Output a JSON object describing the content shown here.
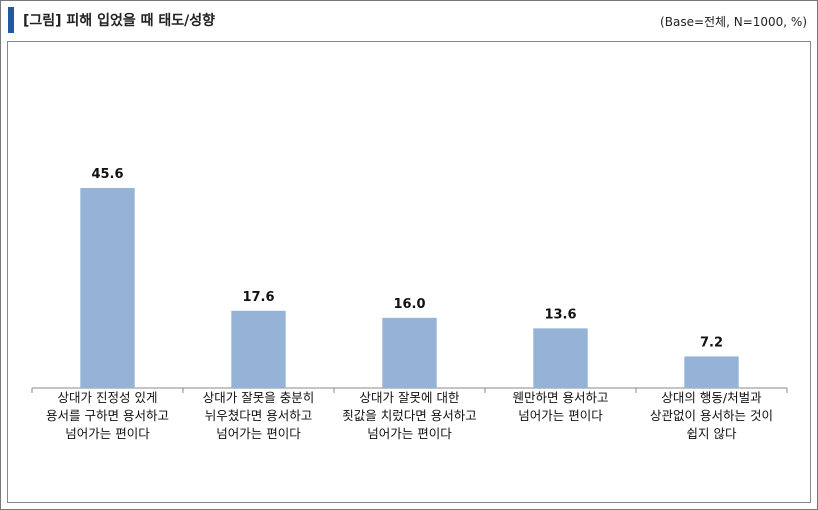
{
  "chart_data": {
    "type": "bar",
    "title": "[그림] 피해 입었을 때 태도/성향",
    "subtitle": "(Base=전체, N=1000, %)",
    "categories": [
      "상대가 진정성 있게 용서를 구하면 용서하고 넘어가는 편이다",
      "상대가 잘못을 충분히 뉘우쳤다면 용서하고 넘어가는 편이다",
      "상대가 잘못에 대한 죗값을 치렀다면 용서하고 넘어가는 편이다",
      "웬만하면 용서하고 넘어가는 편이다",
      "상대의 행동/처벌과 상관없이 용서하는 것이 쉽지 않다"
    ],
    "values": [
      45.6,
      17.6,
      16.0,
      13.6,
      7.2
    ],
    "value_labels": [
      "45.6",
      "17.6",
      "16.0",
      "13.6",
      "7.2"
    ],
    "color": "#95b3d7"
  }
}
